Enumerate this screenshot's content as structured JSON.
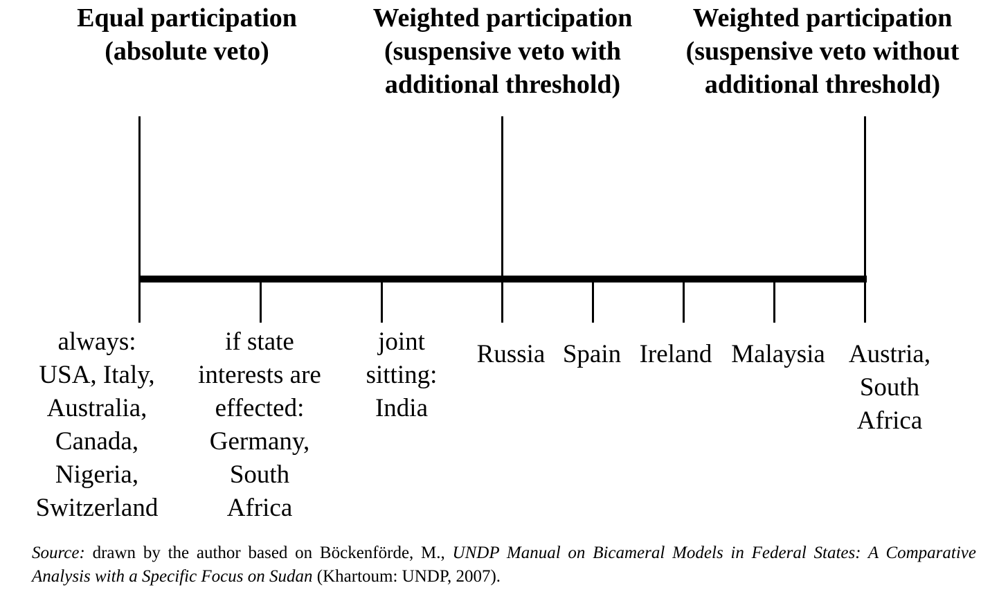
{
  "headings": {
    "equal": "Equal participation\n(absolute veto)",
    "weighted_threshold": "Weighted participation\n(suspensive veto with\nadditional threshold)",
    "weighted_no_threshold": "Weighted participation\n(suspensive veto without\nadditional threshold)"
  },
  "labels": {
    "always": "always:\nUSA, Italy,\nAustralia,\nCanada,\nNigeria,\nSwitzerland",
    "state_interests": "if state\ninterests are\neffected:\nGermany,\nSouth\nAfrica",
    "joint_sitting": "joint\nsitting:\nIndia",
    "russia": "Russia",
    "spain": "Spain",
    "ireland": "Ireland",
    "malaysia": "Malaysia",
    "austria_sa": "Austria,\nSouth\nAfrica"
  },
  "caption": {
    "source_label": "Source:",
    "text1": " drawn by the author based on Böckenförde, M., ",
    "title": "UNDP Manual on Bicameral Models in Federal States: A Comparative Analysis with a Specific Focus on Sudan",
    "text2": " (Khartoum: UNDP, 2007)."
  }
}
